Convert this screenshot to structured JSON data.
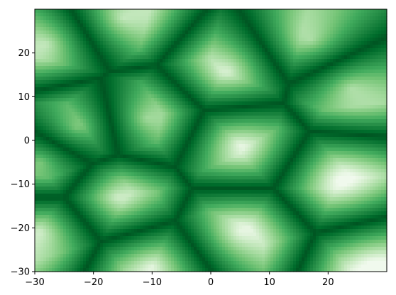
{
  "chart_data": {
    "type": "heatmap",
    "title": "",
    "xlabel": "",
    "ylabel": "",
    "xlim": [
      -30,
      30
    ],
    "ylim": [
      -30,
      30
    ],
    "colormap": "Greens",
    "colormap_stops": [
      "#f7fcf5",
      "#e5f5e0",
      "#c7e9c0",
      "#a1d99b",
      "#74c476",
      "#41ab5d",
      "#238b45",
      "#006d2c",
      "#00441b"
    ],
    "field_description": "Voronoi-like cells: bright centers fading to dark green cell boundaries",
    "cell_centers": [
      {
        "x": -23,
        "y": 3
      },
      {
        "x": -11,
        "y": 5
      },
      {
        "x": 3,
        "y": 16
      },
      {
        "x": 17,
        "y": 23
      },
      {
        "x": -15,
        "y": 28
      },
      {
        "x": -28,
        "y": 22
      },
      {
        "x": 5,
        "y": -1
      },
      {
        "x": 24,
        "y": 12
      },
      {
        "x": 22,
        "y": -9
      },
      {
        "x": -16,
        "y": -13
      },
      {
        "x": -29,
        "y": -21
      },
      {
        "x": 5,
        "y": -21
      },
      {
        "x": -10,
        "y": -29
      },
      {
        "x": -29,
        "y": -5
      },
      {
        "x": 28,
        "y": -29
      }
    ],
    "x_ticks": [
      {
        "value": -30,
        "label": "−30"
      },
      {
        "value": -20,
        "label": "−20"
      },
      {
        "value": -10,
        "label": "−10"
      },
      {
        "value": 0,
        "label": "0"
      },
      {
        "value": 10,
        "label": "10"
      },
      {
        "value": 20,
        "label": "20"
      }
    ],
    "y_ticks": [
      {
        "value": -30,
        "label": "−30"
      },
      {
        "value": -20,
        "label": "−20"
      },
      {
        "value": -10,
        "label": "−10"
      },
      {
        "value": 0,
        "label": "0"
      },
      {
        "value": 10,
        "label": "10"
      },
      {
        "value": 20,
        "label": "20"
      }
    ],
    "grid": false,
    "legend": "none",
    "colorbar": false
  }
}
